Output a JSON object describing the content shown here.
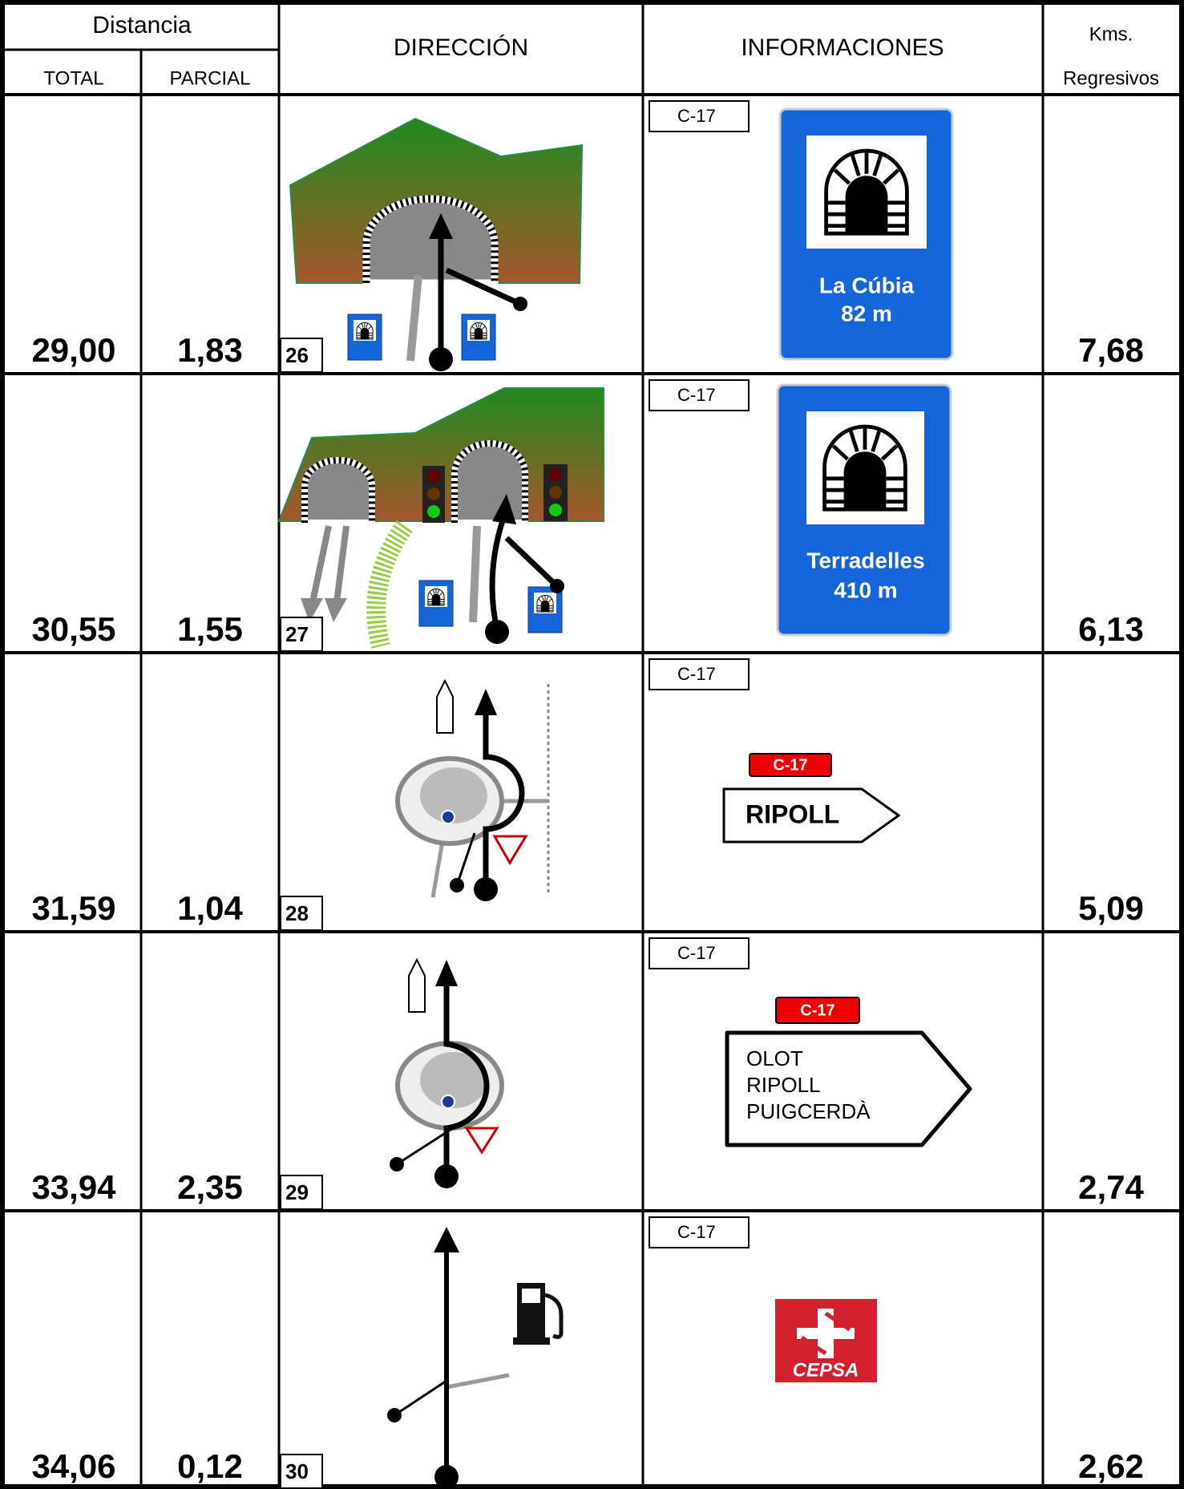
{
  "header": {
    "distancia": "Distancia",
    "total": "TOTAL",
    "parcial": "PARCIAL",
    "direccion": "DIRECCIÓN",
    "informaciones": "INFORMACIONES",
    "kms": "Kms.",
    "regresivos": "Regresivos"
  },
  "rows": [
    {
      "total": "29,00",
      "parcial": "1,83",
      "number": "26",
      "road": "C-17",
      "sign": {
        "name": "La Cúbia",
        "length": "82 m"
      },
      "kms": "7,68"
    },
    {
      "total": "30,55",
      "parcial": "1,55",
      "number": "27",
      "road": "C-17",
      "sign": {
        "name": "Terradelles",
        "length": "410 m"
      },
      "kms": "6,13"
    },
    {
      "total": "31,59",
      "parcial": "1,04",
      "number": "28",
      "road": "C-17",
      "sign": {
        "badge": "C-17",
        "lines": [
          "RIPOLL"
        ]
      },
      "kms": "5,09"
    },
    {
      "total": "33,94",
      "parcial": "2,35",
      "number": "29",
      "road": "C-17",
      "sign": {
        "badge": "C-17",
        "lines": [
          "OLOT",
          "RIPOLL",
          "PUIGCERDÀ"
        ]
      },
      "kms": "2,74"
    },
    {
      "total": "34,06",
      "parcial": "0,12",
      "number": "30",
      "road": "C-17",
      "sign": {
        "brand": "CEPSA"
      },
      "kms": "2,62"
    }
  ]
}
